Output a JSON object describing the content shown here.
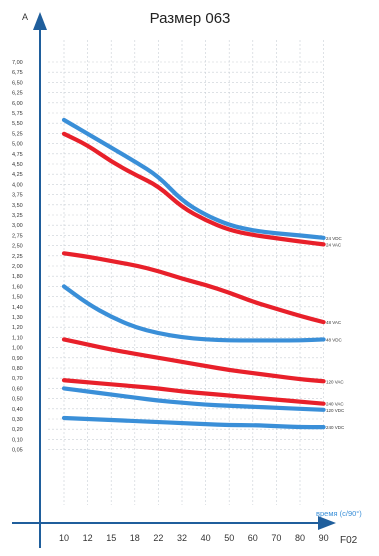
{
  "chart_data": {
    "type": "line",
    "title": "Размер 063",
    "ylabel": "A",
    "xlabel": "F02",
    "x_note": "время (с/90°)",
    "x": [
      10,
      12,
      15,
      18,
      22,
      32,
      40,
      50,
      60,
      70,
      80,
      90
    ],
    "xticks": [
      "10",
      "12",
      "15",
      "18",
      "22",
      "32",
      "40",
      "50",
      "60",
      "70",
      "80",
      "90"
    ],
    "yticks": [
      "7,00",
      "6,75",
      "6,50",
      "6,25",
      "6,00",
      "5,75",
      "5,50",
      "5,25",
      "5,00",
      "4,75",
      "4,50",
      "4,25",
      "4,00",
      "3,75",
      "3,50",
      "3,25",
      "3,00",
      "2,75",
      "2,50",
      "2,25",
      "2,00",
      "1,80",
      "1,60",
      "1,50",
      "1,40",
      "1,30",
      "1,20",
      "1,10",
      "1,00",
      "0,90",
      "0,80",
      "0,70",
      "0,60",
      "0,50",
      "0,40",
      "0,30",
      "0,20",
      "0,10",
      "0,05"
    ],
    "grid": true,
    "series": [
      {
        "name": "24 VDC",
        "color": "#3a8fd8",
        "values": [
          5.58,
          5.24,
          4.9,
          4.56,
          4.2,
          3.6,
          3.25,
          3.0,
          2.87,
          2.8,
          2.75,
          2.69
        ]
      },
      {
        "name": "24 VAC",
        "color": "#e8202a",
        "values": [
          5.24,
          4.96,
          4.56,
          4.24,
          3.96,
          3.44,
          3.12,
          2.88,
          2.76,
          2.68,
          2.6,
          2.53
        ]
      },
      {
        "name": "48 VAC",
        "color": "#e8202a",
        "values": [
          2.31,
          2.23,
          2.12,
          2.02,
          1.9,
          1.75,
          1.63,
          1.54,
          1.45,
          1.38,
          1.31,
          1.25
        ]
      },
      {
        "name": "48 VDC",
        "color": "#3a8fd8",
        "values": [
          1.6,
          1.43,
          1.3,
          1.2,
          1.14,
          1.1,
          1.08,
          1.07,
          1.07,
          1.07,
          1.07,
          1.08
        ]
      },
      {
        "name": "120 VAC",
        "color": "#e8202a",
        "values": [
          1.08,
          1.03,
          0.98,
          0.94,
          0.9,
          0.86,
          0.82,
          0.78,
          0.75,
          0.72,
          0.69,
          0.67
        ]
      },
      {
        "name": "240 VAC",
        "color": "#e8202a",
        "values": [
          0.68,
          0.66,
          0.64,
          0.62,
          0.6,
          0.57,
          0.55,
          0.53,
          0.51,
          0.49,
          0.47,
          0.45
        ]
      },
      {
        "name": "120 VDC",
        "color": "#3a8fd8",
        "values": [
          0.6,
          0.57,
          0.54,
          0.51,
          0.48,
          0.46,
          0.44,
          0.43,
          0.42,
          0.41,
          0.4,
          0.39
        ]
      },
      {
        "name": "240 VDC",
        "color": "#3a8fd8",
        "values": [
          0.31,
          0.3,
          0.29,
          0.28,
          0.27,
          0.26,
          0.25,
          0.24,
          0.24,
          0.23,
          0.22,
          0.22
        ]
      }
    ]
  }
}
